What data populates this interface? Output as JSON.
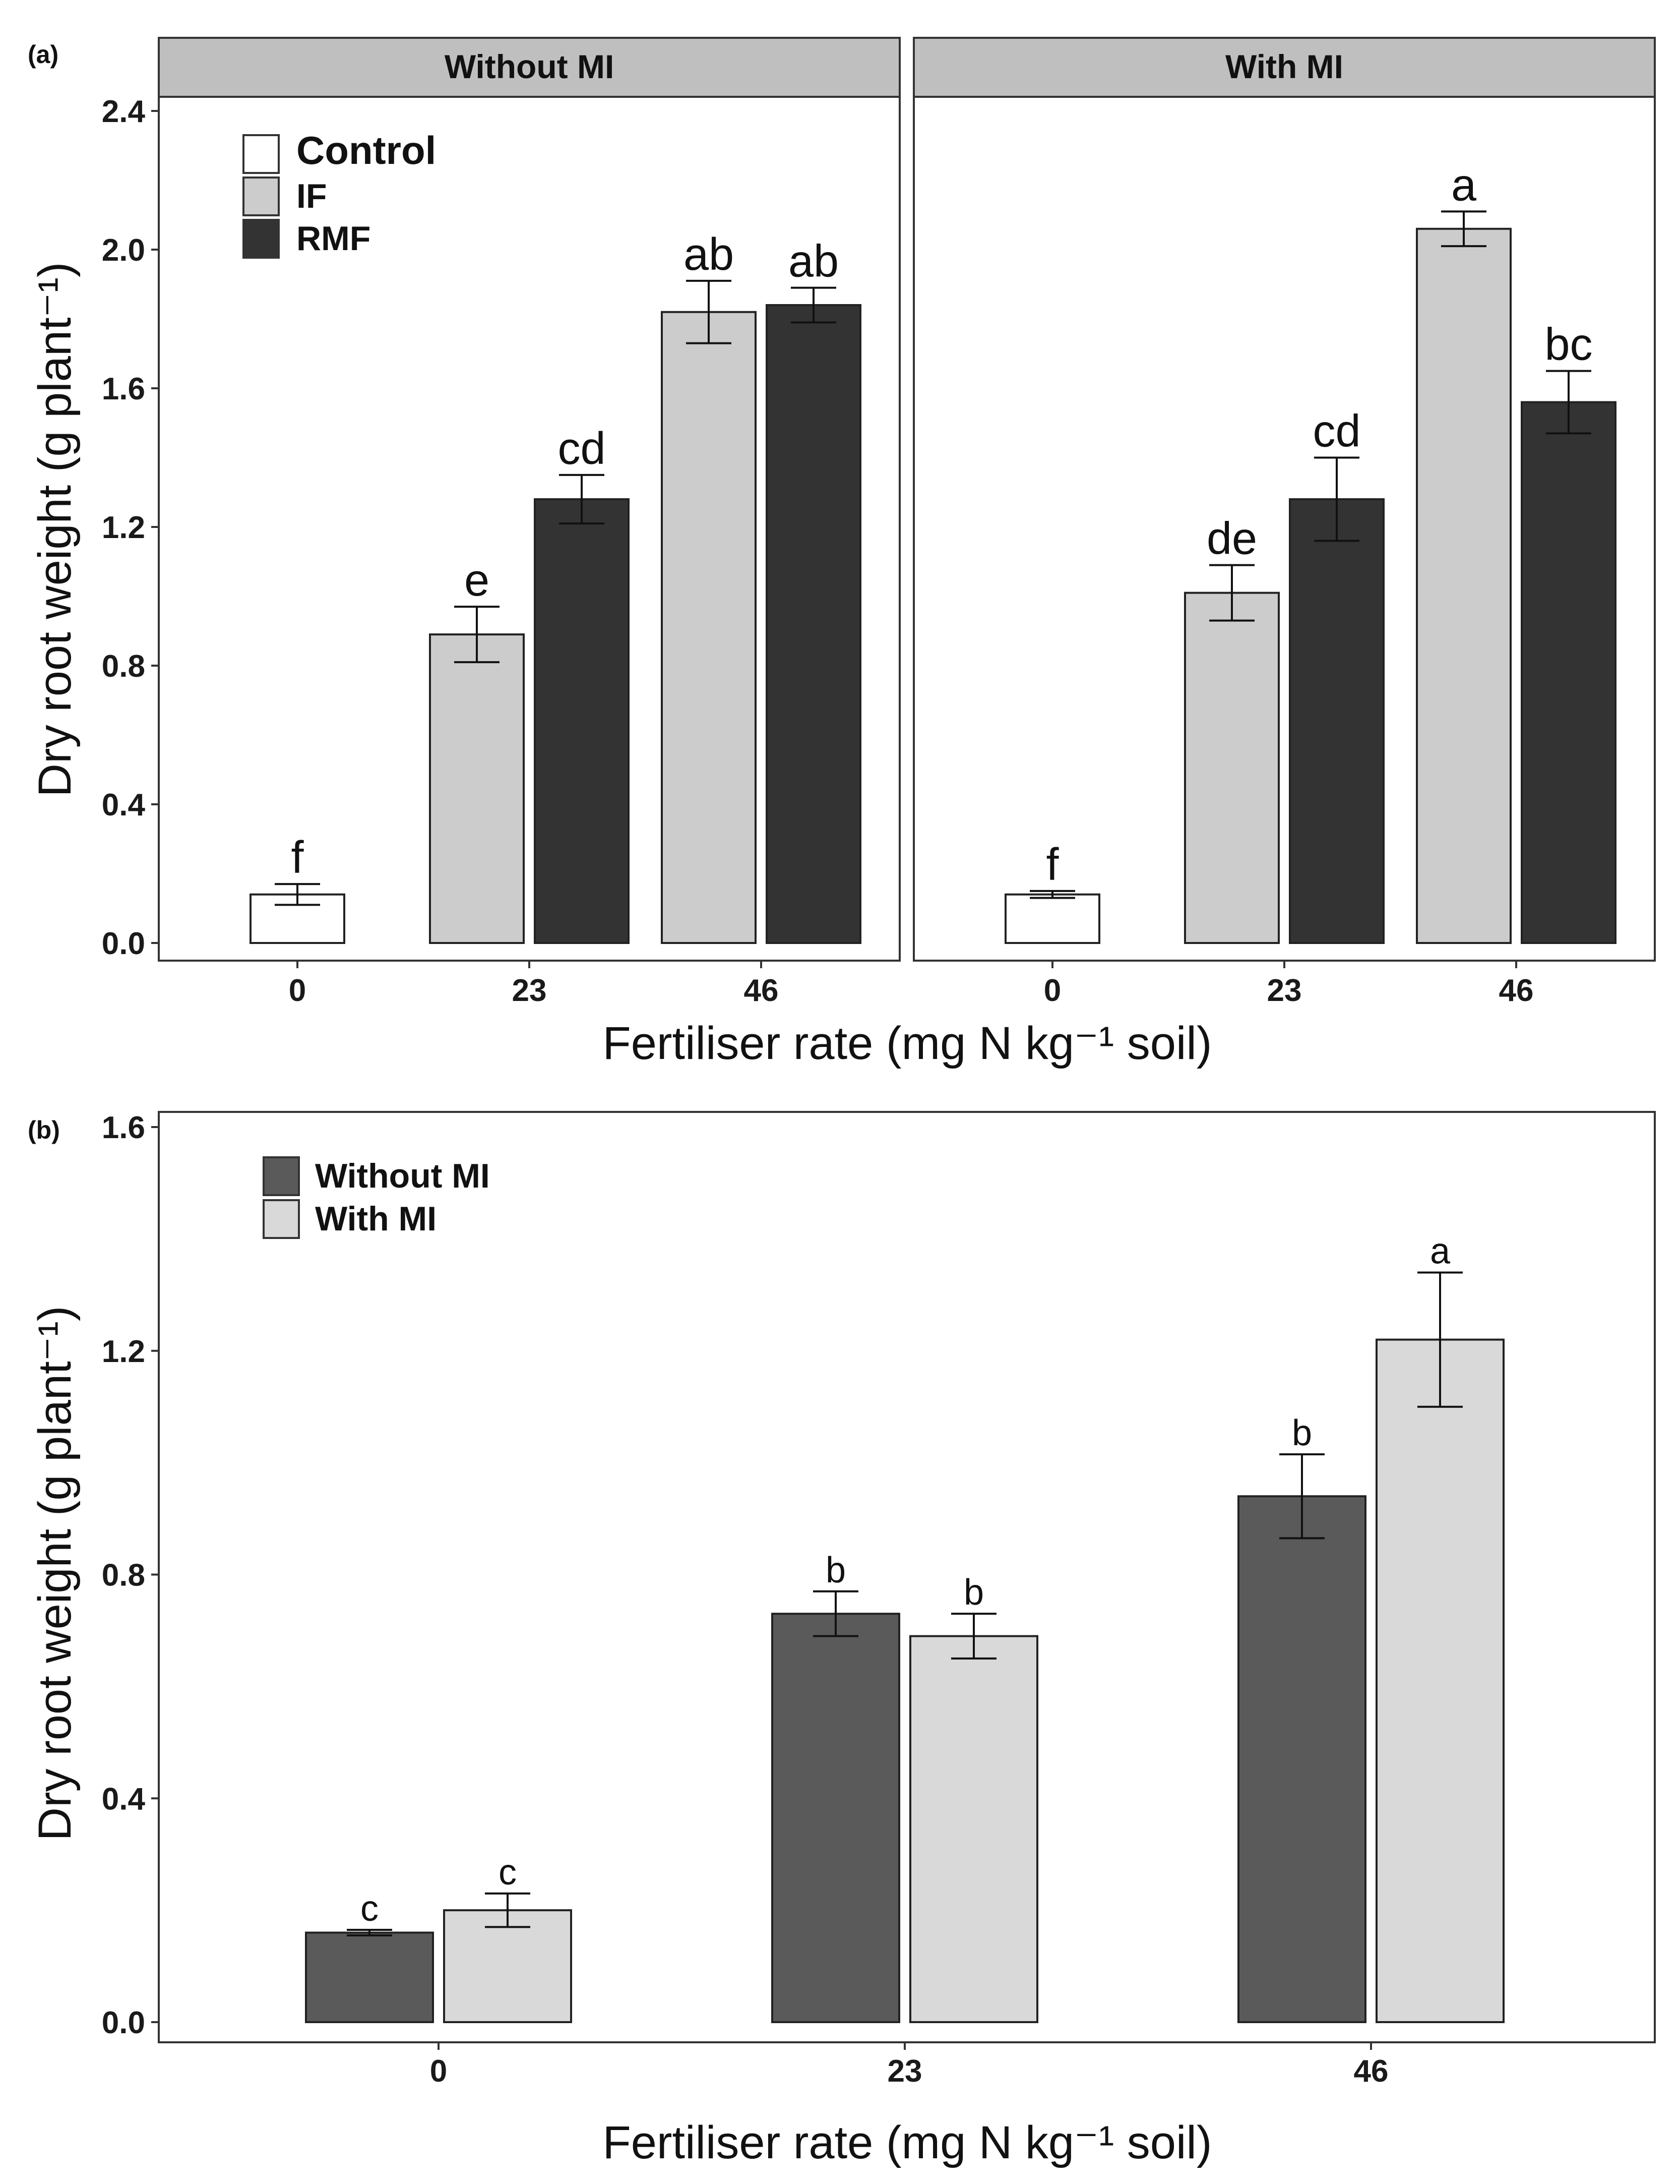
{
  "colors": {
    "control": "#ffffff",
    "IF": "#cccccc",
    "RMF": "#333333",
    "without_mi": "#5a5a5a",
    "with_mi": "#d9d9d9",
    "strip": "#bfbfbf"
  },
  "chart_data": [
    {
      "panel": "(a)",
      "type": "bar",
      "ylabel": "Dry root weight (g plant⁻¹)",
      "xlabel": "Fertiliser rate (mg N kg⁻¹ soil)",
      "ylim": [
        0,
        2.4
      ],
      "yticks": [
        0.0,
        0.4,
        0.8,
        1.2,
        1.6,
        2.0,
        2.4
      ],
      "yticklabels": [
        "0.0",
        "0.4",
        "0.8",
        "1.2",
        "1.6",
        "2.0",
        "2.4"
      ],
      "categories": [
        "0",
        "23",
        "46"
      ],
      "legend": [
        {
          "label": "Control",
          "color": "#ffffff"
        },
        {
          "label": "IF",
          "color": "#cccccc"
        },
        {
          "label": "RMF",
          "color": "#333333"
        }
      ],
      "facets": [
        {
          "title": "Without MI",
          "bars": [
            {
              "category": "0",
              "series": "Control",
              "value": 0.14,
              "error": 0.03,
              "label": "f"
            },
            {
              "category": "23",
              "series": "IF",
              "value": 0.89,
              "error": 0.08,
              "label": "e"
            },
            {
              "category": "23",
              "series": "RMF",
              "value": 1.28,
              "error": 0.07,
              "label": "cd"
            },
            {
              "category": "46",
              "series": "IF",
              "value": 1.82,
              "error": 0.09,
              "label": "ab"
            },
            {
              "category": "46",
              "series": "RMF",
              "value": 1.84,
              "error": 0.05,
              "label": "ab"
            }
          ]
        },
        {
          "title": "With MI",
          "bars": [
            {
              "category": "0",
              "series": "Control",
              "value": 0.14,
              "error": 0.01,
              "label": "f"
            },
            {
              "category": "23",
              "series": "IF",
              "value": 1.01,
              "error": 0.08,
              "label": "de"
            },
            {
              "category": "23",
              "series": "RMF",
              "value": 1.28,
              "error": 0.12,
              "label": "cd"
            },
            {
              "category": "46",
              "series": "IF",
              "value": 2.06,
              "error": 0.05,
              "label": "a"
            },
            {
              "category": "46",
              "series": "RMF",
              "value": 1.56,
              "error": 0.09,
              "label": "bc"
            }
          ]
        }
      ]
    },
    {
      "panel": "(b)",
      "type": "bar",
      "ylabel": "Dry root weight (g plant⁻¹)",
      "xlabel": "Fertiliser rate (mg N kg⁻¹ soil)",
      "ylim": [
        0,
        1.6
      ],
      "yticks": [
        0.0,
        0.4,
        0.8,
        1.2,
        1.6
      ],
      "yticklabels": [
        "0.0",
        "0.4",
        "0.8",
        "1.2",
        "1.6"
      ],
      "categories": [
        "0",
        "23",
        "46"
      ],
      "legend": [
        {
          "label": "Without MI",
          "color": "#5a5a5a"
        },
        {
          "label": "With MI",
          "color": "#d9d9d9"
        }
      ],
      "series": [
        {
          "name": "Without MI",
          "values": [
            0.16,
            0.73,
            0.94
          ],
          "errors": [
            0.005,
            0.04,
            0.075
          ],
          "labels": [
            "c",
            "b",
            "b"
          ]
        },
        {
          "name": "With MI",
          "values": [
            0.2,
            0.69,
            1.22
          ],
          "errors": [
            0.03,
            0.04,
            0.12
          ],
          "labels": [
            "c",
            "b",
            "a"
          ]
        }
      ]
    }
  ]
}
